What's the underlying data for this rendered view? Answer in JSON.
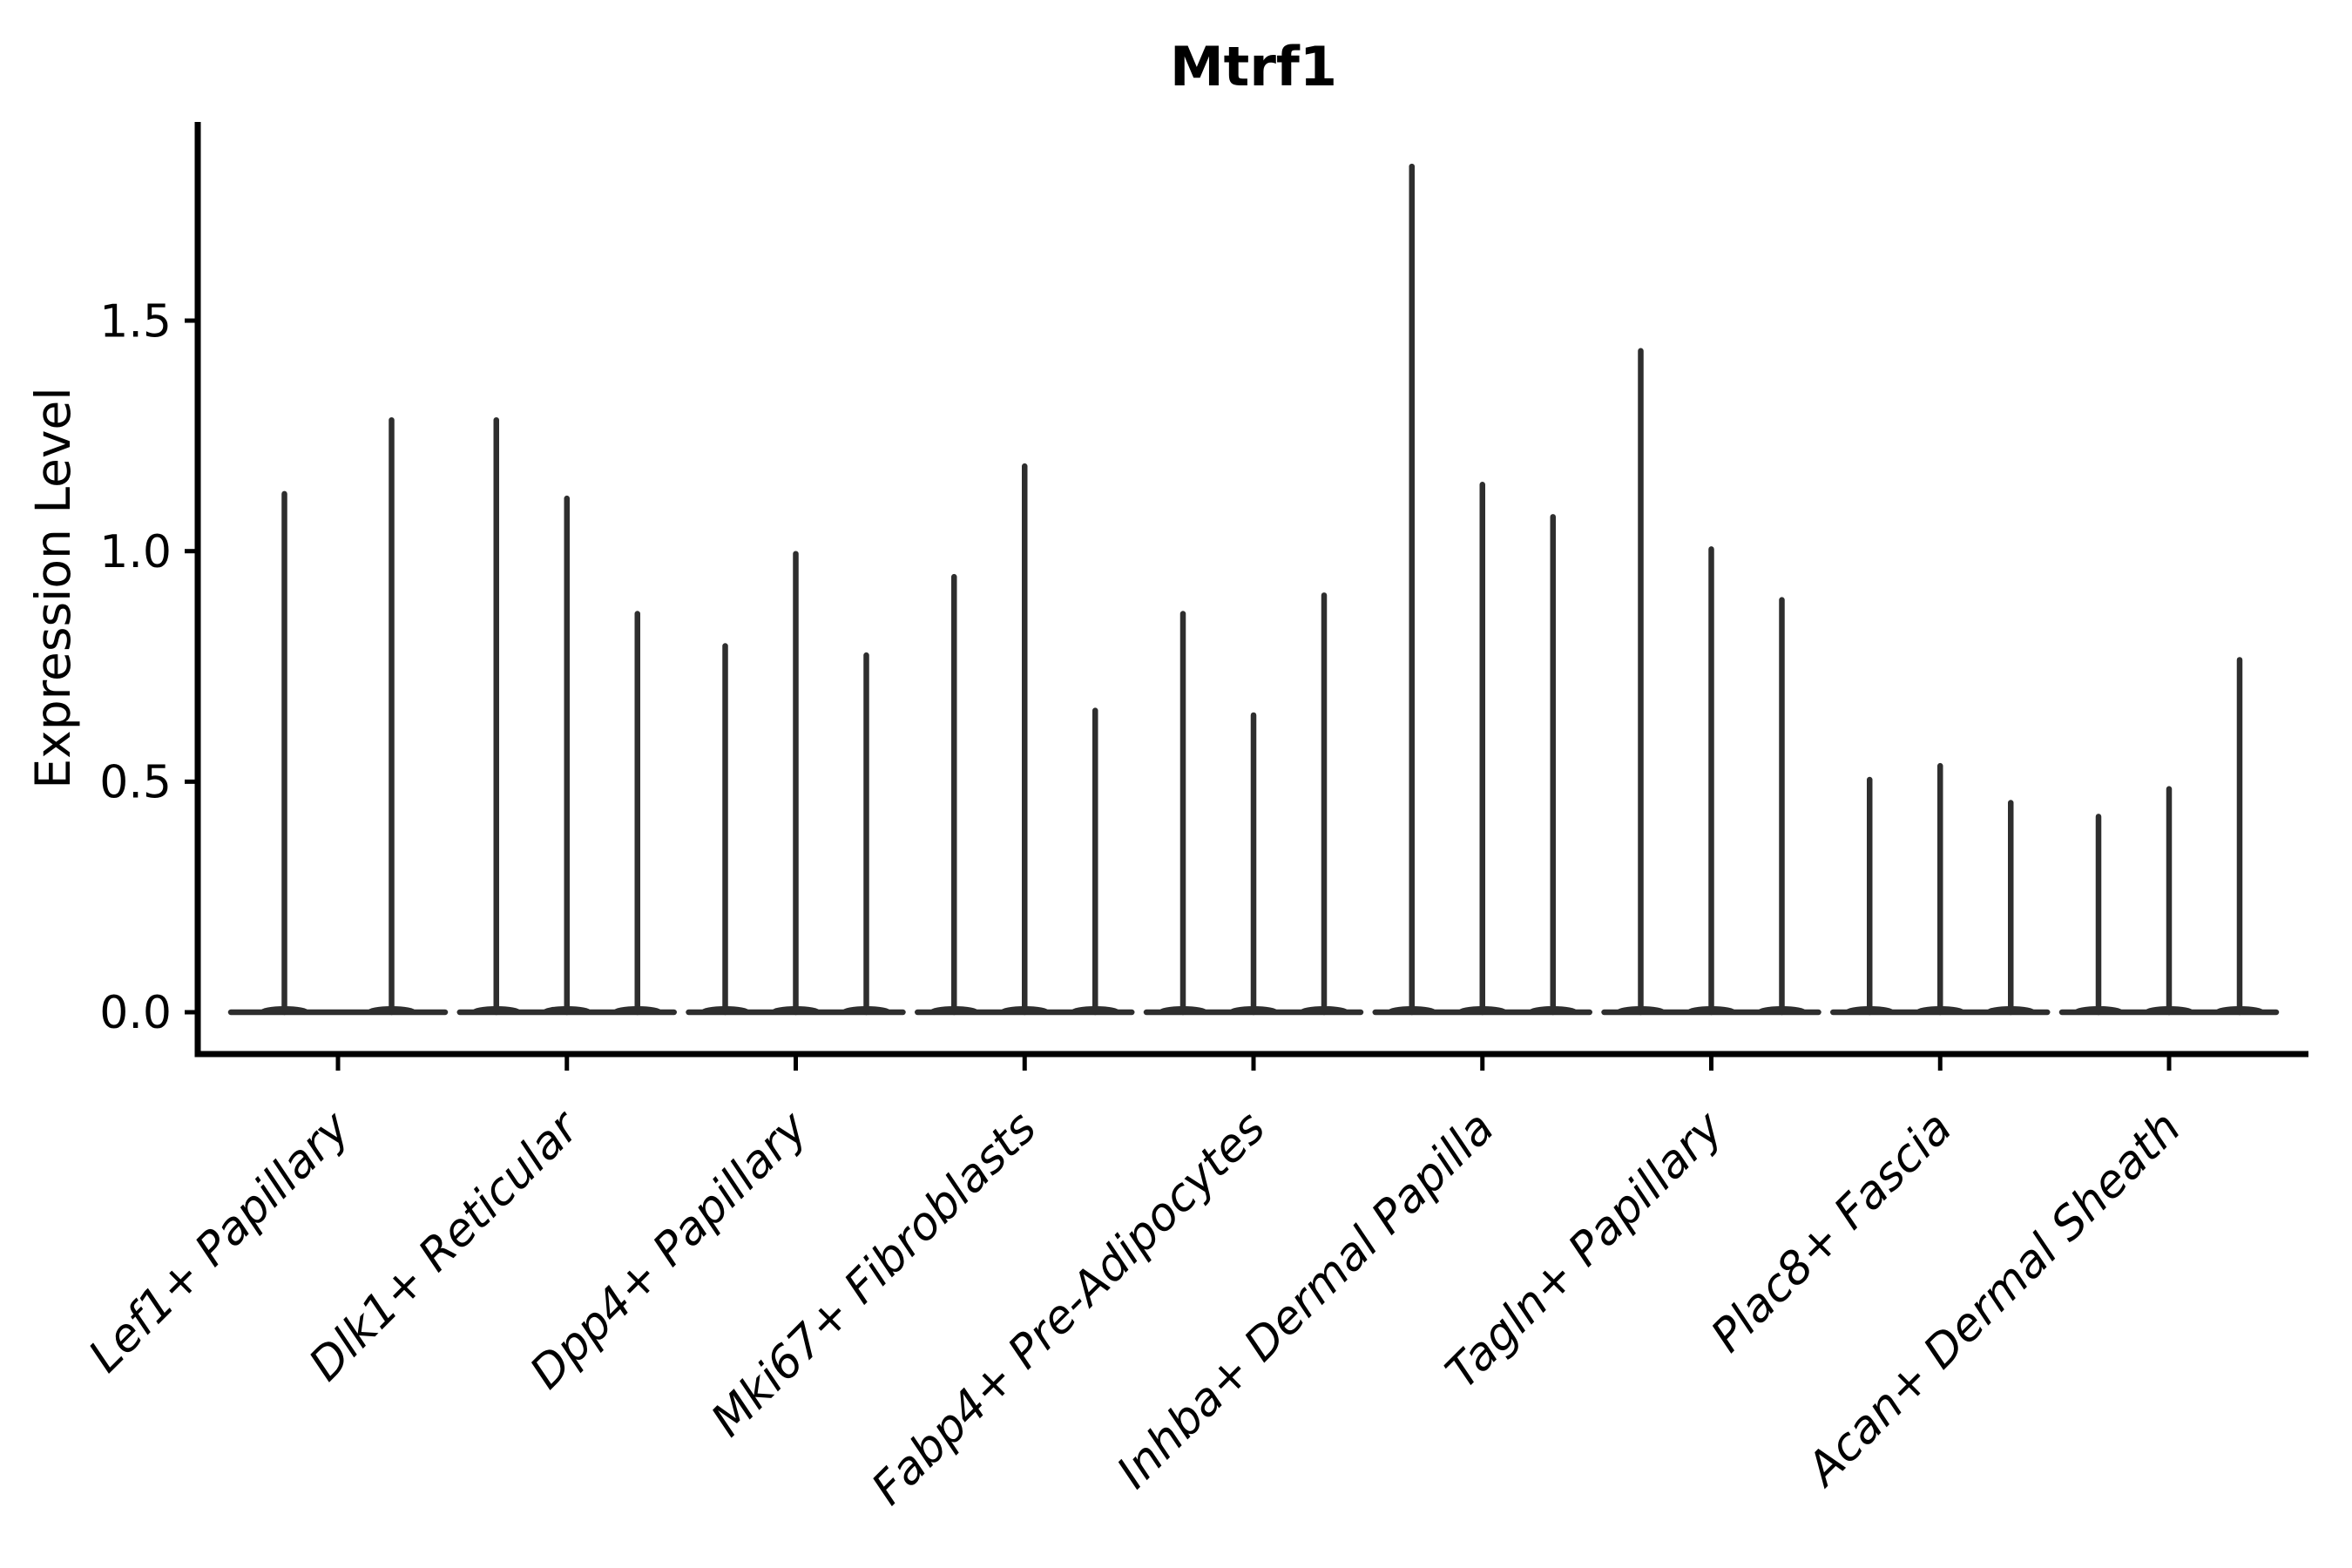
{
  "chart_data": {
    "type": "violin",
    "title": "Mtrf1",
    "ylabel": "Expression Level",
    "xlabel": "",
    "ylim": [
      0,
      1.93
    ],
    "yticks": [
      "0.0",
      "0.5",
      "1.0",
      "1.5"
    ],
    "ytick_values": [
      0.0,
      0.5,
      1.0,
      1.5
    ],
    "grid": "off",
    "legend": "none",
    "categories": [
      "Lef1+ Papillary",
      "Dlk1+ Reticular",
      "Dpp4+ Papillary",
      "Mki67+ Fibroblasts",
      "Fabp4+ Pre-Adipocytes",
      "Inhba+ Dermal Papilla",
      "Tagln+ Papillary",
      "Plac8+ Fascia",
      "Acan+ Dermal Sheath"
    ],
    "violins": [
      {
        "category": "Lef1+ Papillary",
        "max_values": [
          1.13,
          1.29
        ]
      },
      {
        "category": "Dlk1+ Reticular",
        "max_values": [
          1.29,
          1.12,
          0.87
        ]
      },
      {
        "category": "Dpp4+ Papillary",
        "max_values": [
          0.8,
          1.0,
          0.78
        ]
      },
      {
        "category": "Mki67+ Fibroblasts",
        "max_values": [
          0.95,
          1.19,
          0.66
        ]
      },
      {
        "category": "Fabp4+ Pre-Adipocytes",
        "max_values": [
          0.87,
          0.65,
          0.91
        ]
      },
      {
        "category": "Inhba+ Dermal Papilla",
        "max_values": [
          1.84,
          1.15,
          1.08
        ]
      },
      {
        "category": "Tagln+ Papillary",
        "max_values": [
          1.44,
          1.01,
          0.9
        ]
      },
      {
        "category": "Plac8+ Fascia",
        "max_values": [
          0.51,
          0.54,
          0.46
        ]
      },
      {
        "category": "Acan+ Dermal Sheath",
        "max_values": [
          0.43,
          0.49,
          0.77
        ]
      }
    ],
    "style": {
      "background": "#ffffff",
      "violin_color": "#2e2e2e",
      "axis_color": "#000000",
      "x_label_rotation": 45,
      "x_label_fontstyle": "italic"
    }
  }
}
